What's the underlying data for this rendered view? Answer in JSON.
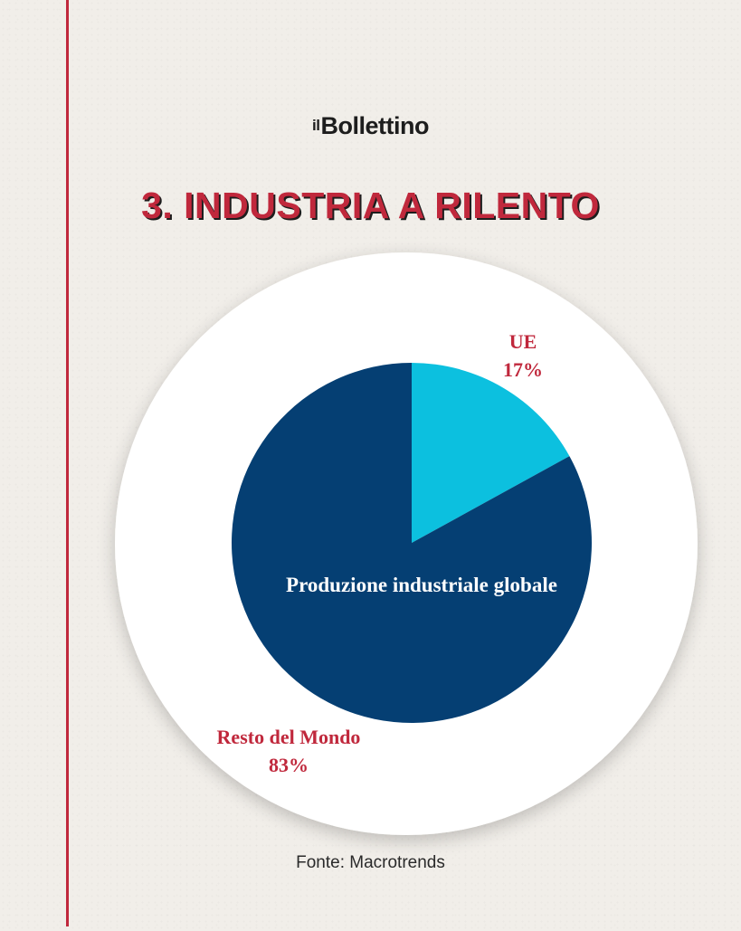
{
  "brand": {
    "prefix": "il",
    "name": "Bollettino"
  },
  "title": "3. INDUSTRIA A RILENTO",
  "source": "Fonte: Macrotrends",
  "colors": {
    "accent": "#c0283c",
    "ue": "#0cc0df",
    "rest": "#053f73"
  },
  "chart_data": {
    "type": "pie",
    "title": "Produzione industriale globale",
    "unit": "%",
    "slices": [
      {
        "label": "UE",
        "value": 17,
        "display": "17%",
        "color": "#0cc0df"
      },
      {
        "label": "Resto del Mondo",
        "value": 83,
        "display": "83%",
        "color": "#053f73"
      }
    ]
  }
}
